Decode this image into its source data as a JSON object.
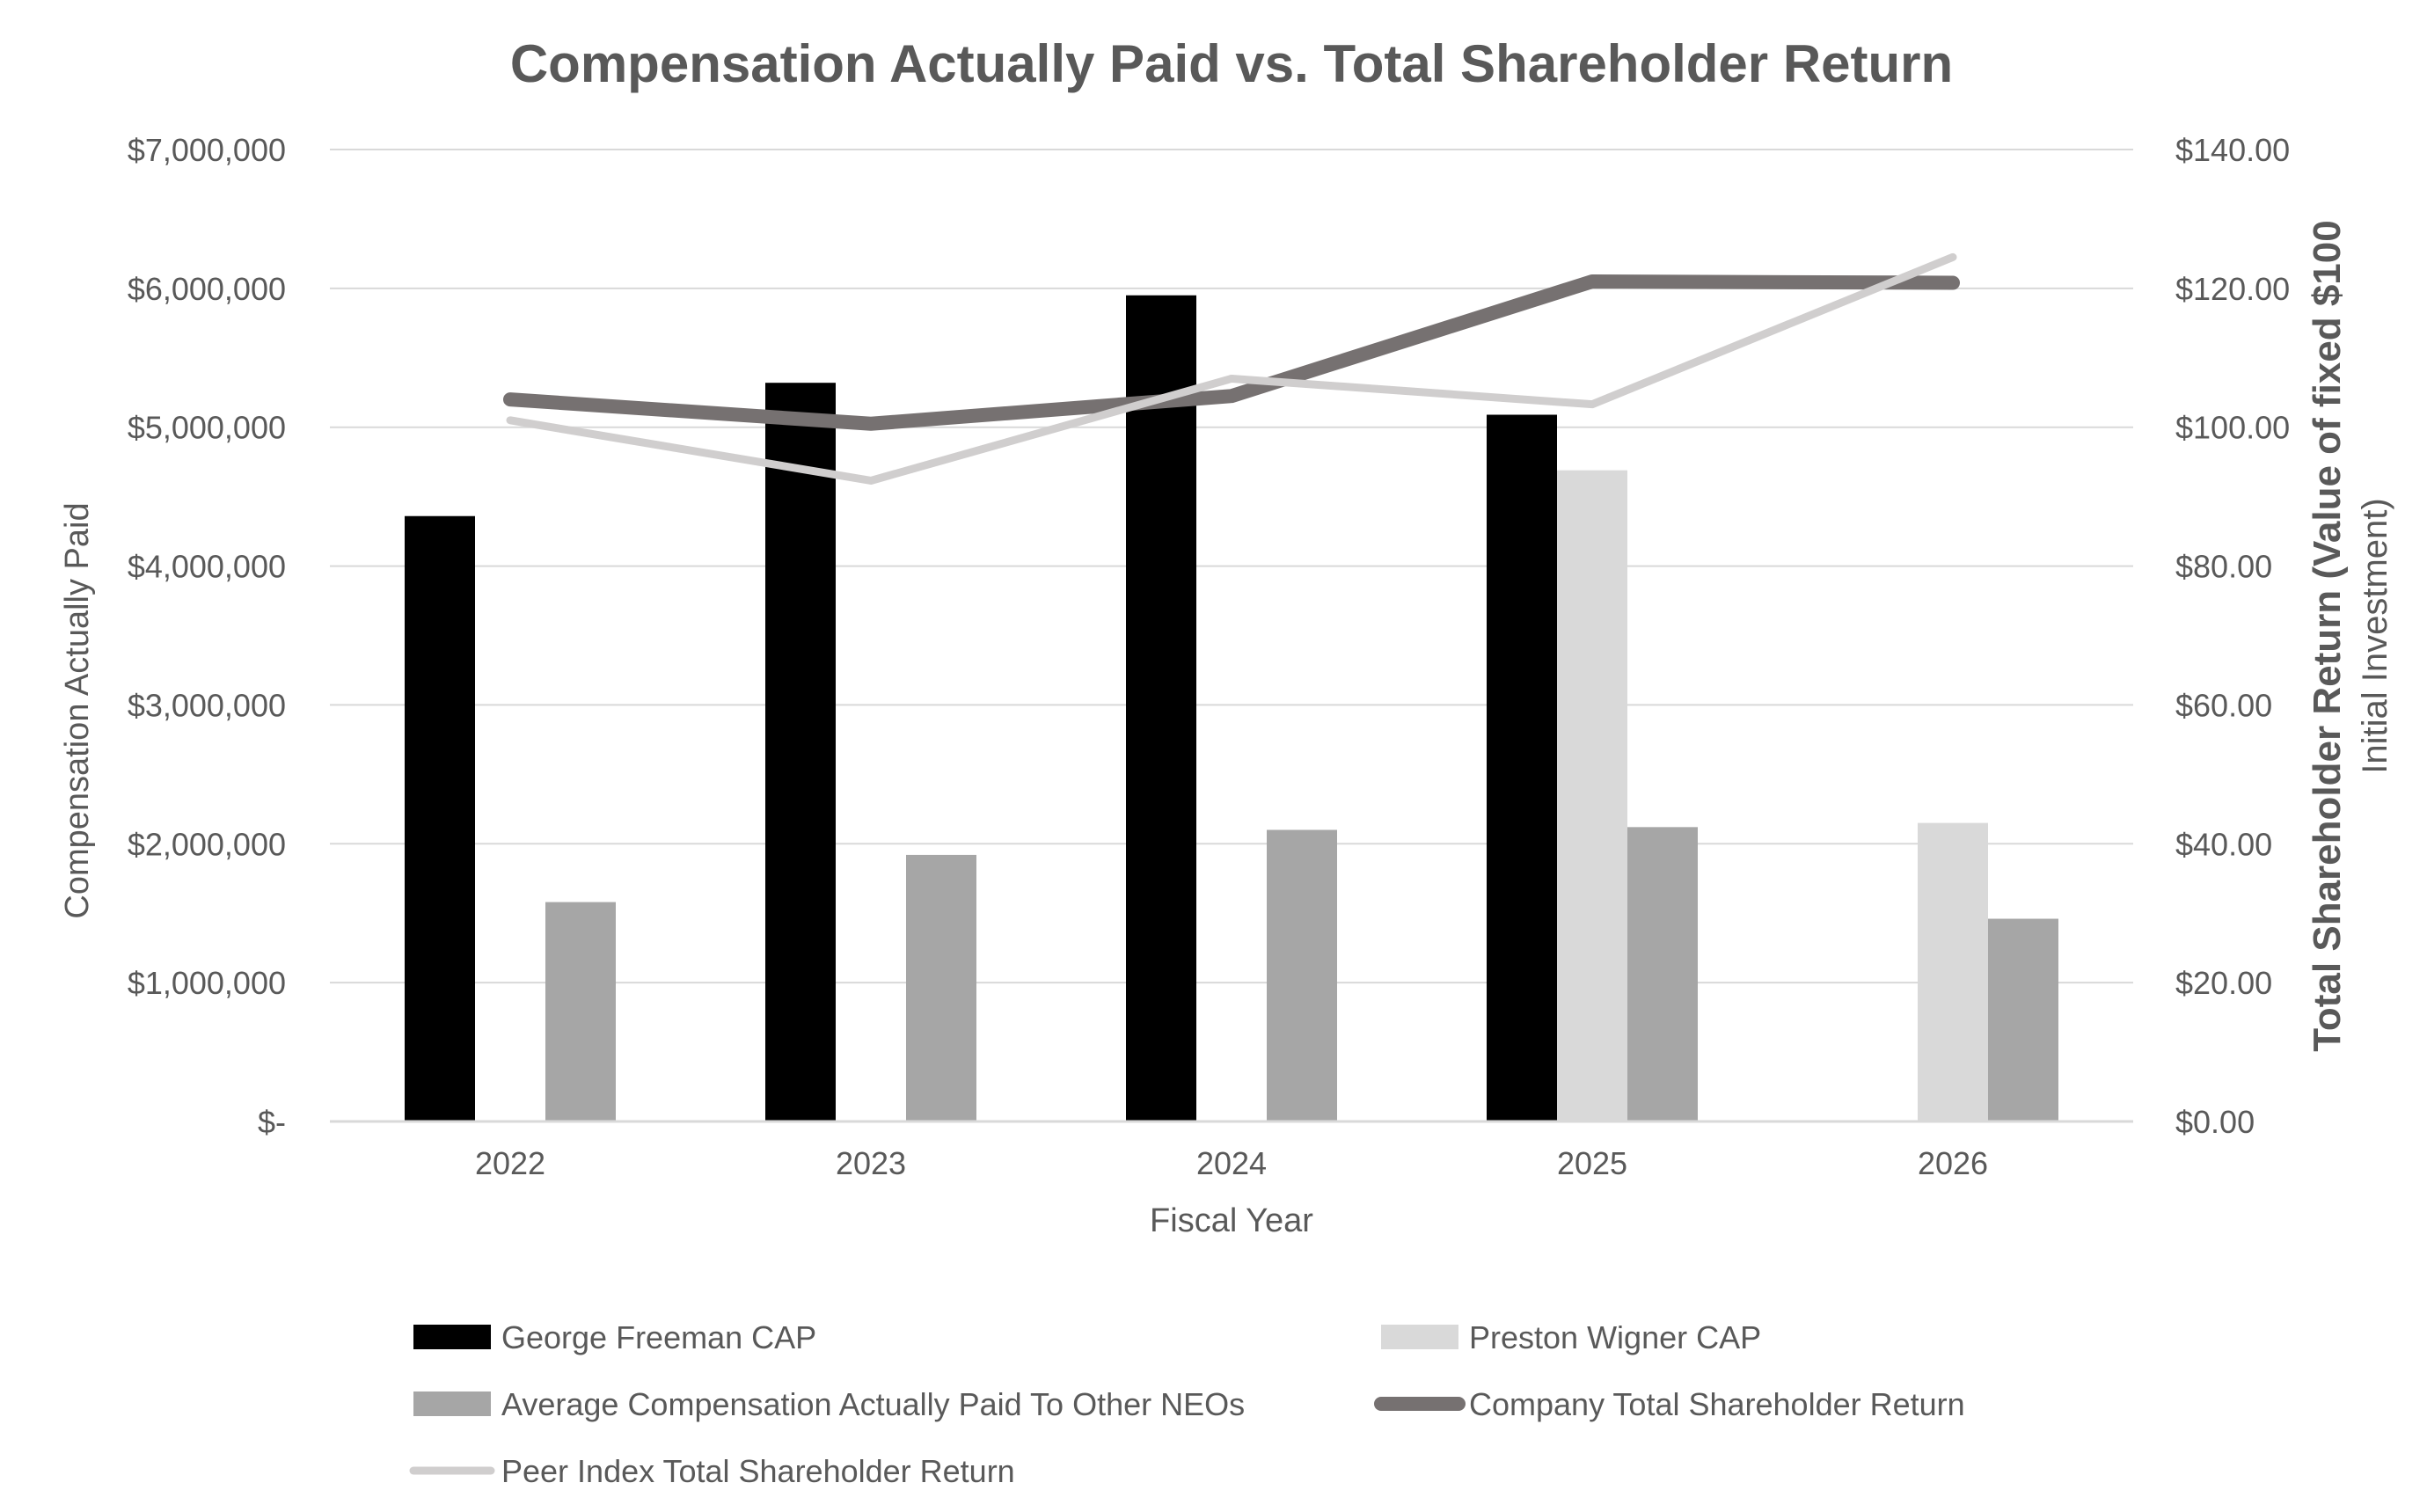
{
  "chart_data": {
    "type": "bar",
    "title": "Compensation Actually Paid vs. Total Shareholder Return",
    "xlabel": "Fiscal Year",
    "ylabel": "Compensation Actually Paid",
    "y2label_line1": "Total Shareholder Return (Value of fixed $100",
    "y2label_line2": "Initial Investment)",
    "categories": [
      "2022",
      "2023",
      "2024",
      "2025",
      "2026"
    ],
    "ylim": [
      0,
      7000000
    ],
    "y2lim": [
      0,
      140
    ],
    "y_ticks": [
      {
        "value": 0,
        "label": "$-"
      },
      {
        "value": 1000000,
        "label": "$1,000,000"
      },
      {
        "value": 2000000,
        "label": "$2,000,000"
      },
      {
        "value": 3000000,
        "label": "$3,000,000"
      },
      {
        "value": 4000000,
        "label": "$4,000,000"
      },
      {
        "value": 5000000,
        "label": "$5,000,000"
      },
      {
        "value": 6000000,
        "label": "$6,000,000"
      },
      {
        "value": 7000000,
        "label": "$7,000,000"
      }
    ],
    "y2_ticks": [
      {
        "value": 0,
        "label": "$0.00"
      },
      {
        "value": 20,
        "label": "$20.00"
      },
      {
        "value": 40,
        "label": "$40.00"
      },
      {
        "value": 60,
        "label": "$60.00"
      },
      {
        "value": 80,
        "label": "$80.00"
      },
      {
        "value": 100,
        "label": "$100.00"
      },
      {
        "value": 120,
        "label": "$120.00"
      },
      {
        "value": 140,
        "label": "$140.00"
      }
    ],
    "grid": true,
    "legend_position": "bottom",
    "bar_series": [
      {
        "name": "George Freeman CAP",
        "color": "#000000",
        "values": [
          4360000,
          5320000,
          5950000,
          5090000,
          null
        ]
      },
      {
        "name": "Preston Wigner CAP",
        "color": "#d9d9d9",
        "values": [
          null,
          null,
          null,
          4690000,
          2150000
        ]
      },
      {
        "name": "Average Compensation Actually Paid To Other NEOs",
        "color": "#a6a6a6",
        "values": [
          1580000,
          1920000,
          2100000,
          2120000,
          1460000
        ]
      }
    ],
    "line_series": [
      {
        "name": "Company Total Shareholder Return",
        "color": "#767171",
        "values": [
          104.0,
          100.5,
          104.5,
          121.0,
          120.8
        ]
      },
      {
        "name": "Peer Index Total Shareholder Return",
        "color": "#d0cece",
        "values": [
          101.0,
          92.3,
          107.0,
          103.3,
          124.5
        ]
      }
    ]
  }
}
